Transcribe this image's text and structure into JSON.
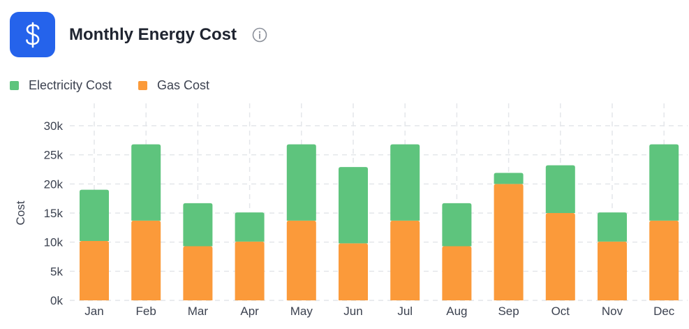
{
  "header": {
    "title": "Monthly Energy Cost",
    "logo_icon": "dollar-icon",
    "info_icon": "info-icon"
  },
  "colors": {
    "brand": "#2563eb",
    "electricity": "#5ec47d",
    "gas": "#fb9a3a"
  },
  "chart_data": {
    "type": "bar",
    "stacked": true,
    "categories": [
      "Jan",
      "Feb",
      "Mar",
      "Apr",
      "May",
      "Jun",
      "Jul",
      "Aug",
      "Sep",
      "Oct",
      "Nov",
      "Dec"
    ],
    "series": [
      {
        "name": "Gas Cost",
        "color": "#fb9a3a",
        "values": [
          10200,
          13700,
          9300,
          10100,
          13700,
          9800,
          13700,
          9300,
          20000,
          15000,
          10100,
          13700
        ]
      },
      {
        "name": "Electricity Cost",
        "color": "#5ec47d",
        "values": [
          8800,
          13100,
          7400,
          5000,
          13100,
          13100,
          13100,
          7400,
          1900,
          8200,
          5000,
          13100
        ]
      }
    ],
    "ylabel": "Cost",
    "xlabel": "",
    "ylim": [
      0,
      30000
    ],
    "yticks": [
      {
        "value": 0,
        "label": "0k"
      },
      {
        "value": 5000,
        "label": "5k"
      },
      {
        "value": 10000,
        "label": "10k"
      },
      {
        "value": 15000,
        "label": "15k"
      },
      {
        "value": 20000,
        "label": "20k"
      },
      {
        "value": 25000,
        "label": "25k"
      },
      {
        "value": 30000,
        "label": "30k"
      }
    ],
    "grid": true,
    "legend_position": "top-left"
  }
}
